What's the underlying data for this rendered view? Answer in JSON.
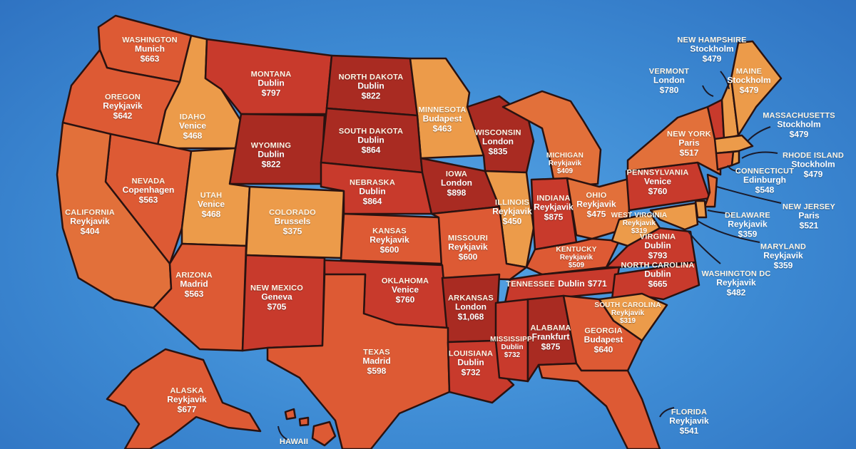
{
  "colors": {
    "ocean": "#3d8ad3",
    "tier_light": "#ec9b4a",
    "tier_low": "#e2703a",
    "tier_mid": "#dd5a34",
    "tier_high": "#c83a2c",
    "tier_top": "#a92b22"
  },
  "states": [
    {
      "key": "washington",
      "name": "WASHINGTON",
      "city": "Munich",
      "price": "$663"
    },
    {
      "key": "oregon",
      "name": "OREGON",
      "city": "Reykjavik",
      "price": "$642"
    },
    {
      "key": "idaho",
      "name": "IDAHO",
      "city": "Venice",
      "price": "$468"
    },
    {
      "key": "montana",
      "name": "MONTANA",
      "city": "Dublin",
      "price": "$797"
    },
    {
      "key": "north_dakota",
      "name": "NORTH DAKOTA",
      "city": "Dublin",
      "price": "$822"
    },
    {
      "key": "minnesota",
      "name": "MINNESOTA",
      "city": "Budapest",
      "price": "$463"
    },
    {
      "key": "wisconsin",
      "name": "WISCONSIN",
      "city": "London",
      "price": "$835"
    },
    {
      "key": "michigan",
      "name": "MICHIGAN",
      "city": "Reykjavik",
      "price": "$409"
    },
    {
      "key": "wyoming",
      "name": "WYOMING",
      "city": "Dublin",
      "price": "$822"
    },
    {
      "key": "south_dakota",
      "name": "SOUTH DAKOTA",
      "city": "Dublin",
      "price": "$864"
    },
    {
      "key": "nevada",
      "name": "NEVADA",
      "city": "Copenhagen",
      "price": "$563"
    },
    {
      "key": "utah",
      "name": "UTAH",
      "city": "Venice",
      "price": "$468"
    },
    {
      "key": "colorado",
      "name": "COLORADO",
      "city": "Brussels",
      "price": "$375"
    },
    {
      "key": "nebraska",
      "name": "NEBRASKA",
      "city": "Dublin",
      "price": "$864"
    },
    {
      "key": "iowa",
      "name": "IOWA",
      "city": "London",
      "price": "$898"
    },
    {
      "key": "illinois",
      "name": "ILLINOIS",
      "city": "Reykjavik",
      "price": "$450"
    },
    {
      "key": "indiana",
      "name": "INDIANA",
      "city": "Reykjavik",
      "price": "$875"
    },
    {
      "key": "ohio",
      "name": "OHIO",
      "city": "Reykjavik",
      "price": "$475"
    },
    {
      "key": "pennsylvania",
      "name": "PENNSYLVANIA",
      "city": "Venice",
      "price": "$760"
    },
    {
      "key": "new_york",
      "name": "NEW YORK",
      "city": "Paris",
      "price": "$517"
    },
    {
      "key": "california",
      "name": "CALIFORNIA",
      "city": "Reykjavik",
      "price": "$404"
    },
    {
      "key": "kansas",
      "name": "KANSAS",
      "city": "Reykjavik",
      "price": "$600"
    },
    {
      "key": "missouri",
      "name": "MISSOURI",
      "city": "Reykjavik",
      "price": "$600"
    },
    {
      "key": "kentucky",
      "name": "KENTUCKY",
      "city": "Reykjavik",
      "price": "$509"
    },
    {
      "key": "west_virginia",
      "name": "WEST VIRGINIA",
      "city": "Reykjavik",
      "price": "$319"
    },
    {
      "key": "virginia",
      "name": "VIRGINIA",
      "city": "Dublin",
      "price": "$793"
    },
    {
      "key": "arizona",
      "name": "ARIZONA",
      "city": "Madrid",
      "price": "$563"
    },
    {
      "key": "new_mexico",
      "name": "NEW MEXICO",
      "city": "Geneva",
      "price": "$705"
    },
    {
      "key": "oklahoma",
      "name": "OKLAHOMA",
      "city": "Venice",
      "price": "$760"
    },
    {
      "key": "arkansas",
      "name": "ARKANSAS",
      "city": "London",
      "price": "$1,068"
    },
    {
      "key": "tennessee",
      "name": "TENNESSEE",
      "city": "Dublin",
      "price": "$771"
    },
    {
      "key": "north_carolina",
      "name": "NORTH CAROLINA",
      "city": "Dublin",
      "price": "$665"
    },
    {
      "key": "south_carolina",
      "name": "SOUTH CAROLINA",
      "city": "Reykjavik",
      "price": "$319"
    },
    {
      "key": "texas",
      "name": "TEXAS",
      "city": "Madrid",
      "price": "$598"
    },
    {
      "key": "louisiana",
      "name": "LOUISIANA",
      "city": "Dublin",
      "price": "$732"
    },
    {
      "key": "mississippi",
      "name": "MISSISSIPPI",
      "city": "Dublin",
      "price": "$732"
    },
    {
      "key": "alabama",
      "name": "ALABAMA",
      "city": "Frankfurt",
      "price": "$875"
    },
    {
      "key": "georgia",
      "name": "GEORGIA",
      "city": "Budapest",
      "price": "$640"
    },
    {
      "key": "alaska",
      "name": "ALASKA",
      "city": "Reykjavik",
      "price": "$677"
    },
    {
      "key": "hawaii",
      "name": "HAWAII",
      "city": "",
      "price": ""
    },
    {
      "key": "florida",
      "name": "FLORIDA",
      "city": "Reykjavik",
      "price": "$541"
    },
    {
      "key": "new_hampshire",
      "name": "NEW HAMPSHIRE",
      "city": "Stockholm",
      "price": "$479"
    },
    {
      "key": "vermont",
      "name": "VERMONT",
      "city": "London",
      "price": "$780"
    },
    {
      "key": "maine",
      "name": "MAINE",
      "city": "Stockholm",
      "price": "$479"
    },
    {
      "key": "massachusetts",
      "name": "MASSACHUSETTS",
      "city": "Stockholm",
      "price": "$479"
    },
    {
      "key": "rhode_island",
      "name": "RHODE ISLAND",
      "city": "Stockholm",
      "price": "$479"
    },
    {
      "key": "connecticut",
      "name": "CONNECTICUT",
      "city": "Edinburgh",
      "price": "$548"
    },
    {
      "key": "new_jersey",
      "name": "NEW JERSEY",
      "city": "Paris",
      "price": "$521"
    },
    {
      "key": "delaware",
      "name": "DELAWARE",
      "city": "Reykjavik",
      "price": "$359"
    },
    {
      "key": "maryland",
      "name": "MARYLAND",
      "city": "Reykjavik",
      "price": "$359"
    },
    {
      "key": "washington_dc",
      "name": "WASHINGTON DC",
      "city": "Reykjavik",
      "price": "$482"
    }
  ]
}
